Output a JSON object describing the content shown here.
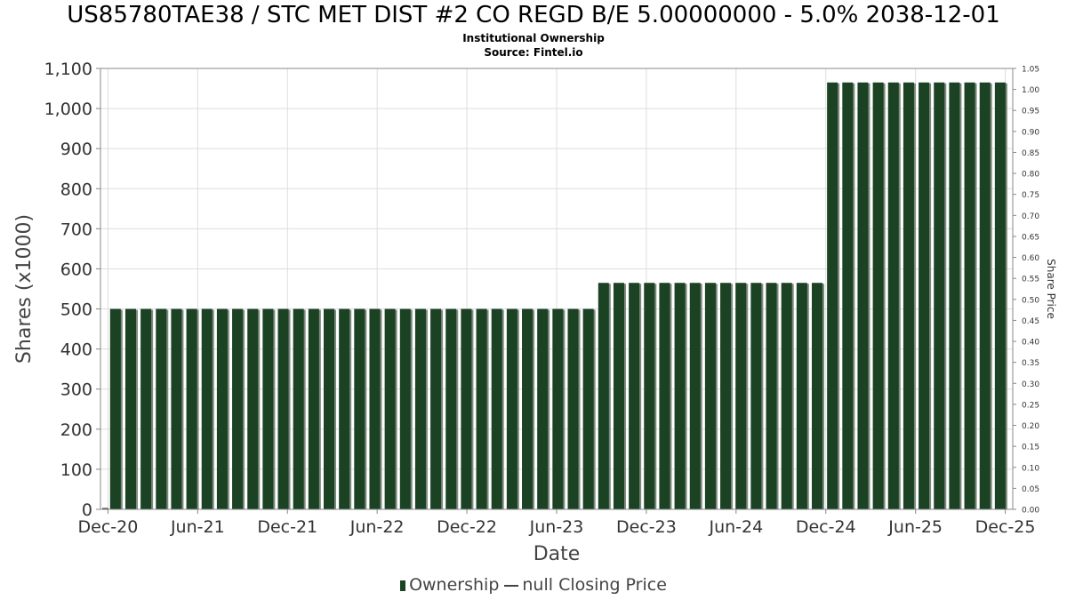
{
  "chart_data": {
    "type": "bar",
    "title": "US85780TAE38 / STC MET DIST #2 CO REGD B/E 5.00000000 - 5.0% 2038-12-01",
    "subtitle": "Institutional Ownership",
    "source": "Source: Fintel.io",
    "xlabel": "Date",
    "ylabel": "Shares (x1000)",
    "y2label": "Share Price",
    "ylim": [
      0,
      1100
    ],
    "y2lim": [
      0,
      1.05
    ],
    "yticks": [
      "0",
      "100",
      "200",
      "300",
      "400",
      "500",
      "600",
      "700",
      "800",
      "900",
      "1,000",
      "1,100"
    ],
    "y2ticks": [
      "0.00",
      "0.05",
      "0.10",
      "0.15",
      "0.20",
      "0.25",
      "0.30",
      "0.35",
      "0.40",
      "0.45",
      "0.50",
      "0.55",
      "0.60",
      "0.65",
      "0.70",
      "0.75",
      "0.80",
      "0.85",
      "0.90",
      "0.95",
      "1.00",
      "1.05"
    ],
    "xticks": [
      "Dec-20",
      "Jun-21",
      "Dec-21",
      "Jun-22",
      "Dec-22",
      "Jun-23",
      "Dec-23",
      "Jun-24",
      "Dec-24",
      "Jun-25",
      "Dec-25"
    ],
    "xrange_months": [
      -0.5,
      60.5
    ],
    "bar_start_month": 0.5,
    "bar_step_month": 1.02,
    "grid": true,
    "legend_position": "bottom-center",
    "series": [
      {
        "name": "Ownership",
        "color": "#1a4223",
        "values": [
          500,
          500,
          500,
          500,
          500,
          500,
          500,
          500,
          500,
          500,
          500,
          500,
          500,
          500,
          500,
          500,
          500,
          500,
          500,
          500,
          500,
          500,
          500,
          500,
          500,
          500,
          500,
          500,
          500,
          500,
          500,
          500,
          565,
          565,
          565,
          565,
          565,
          565,
          565,
          565,
          565,
          565,
          565,
          565,
          565,
          565,
          565,
          1065,
          1065,
          1065,
          1065,
          1065,
          1065,
          1065,
          1065,
          1065,
          1065,
          1065,
          1065
        ]
      }
    ]
  },
  "legend": {
    "ownership_label": "Ownership",
    "price_label": "null Closing Price"
  }
}
